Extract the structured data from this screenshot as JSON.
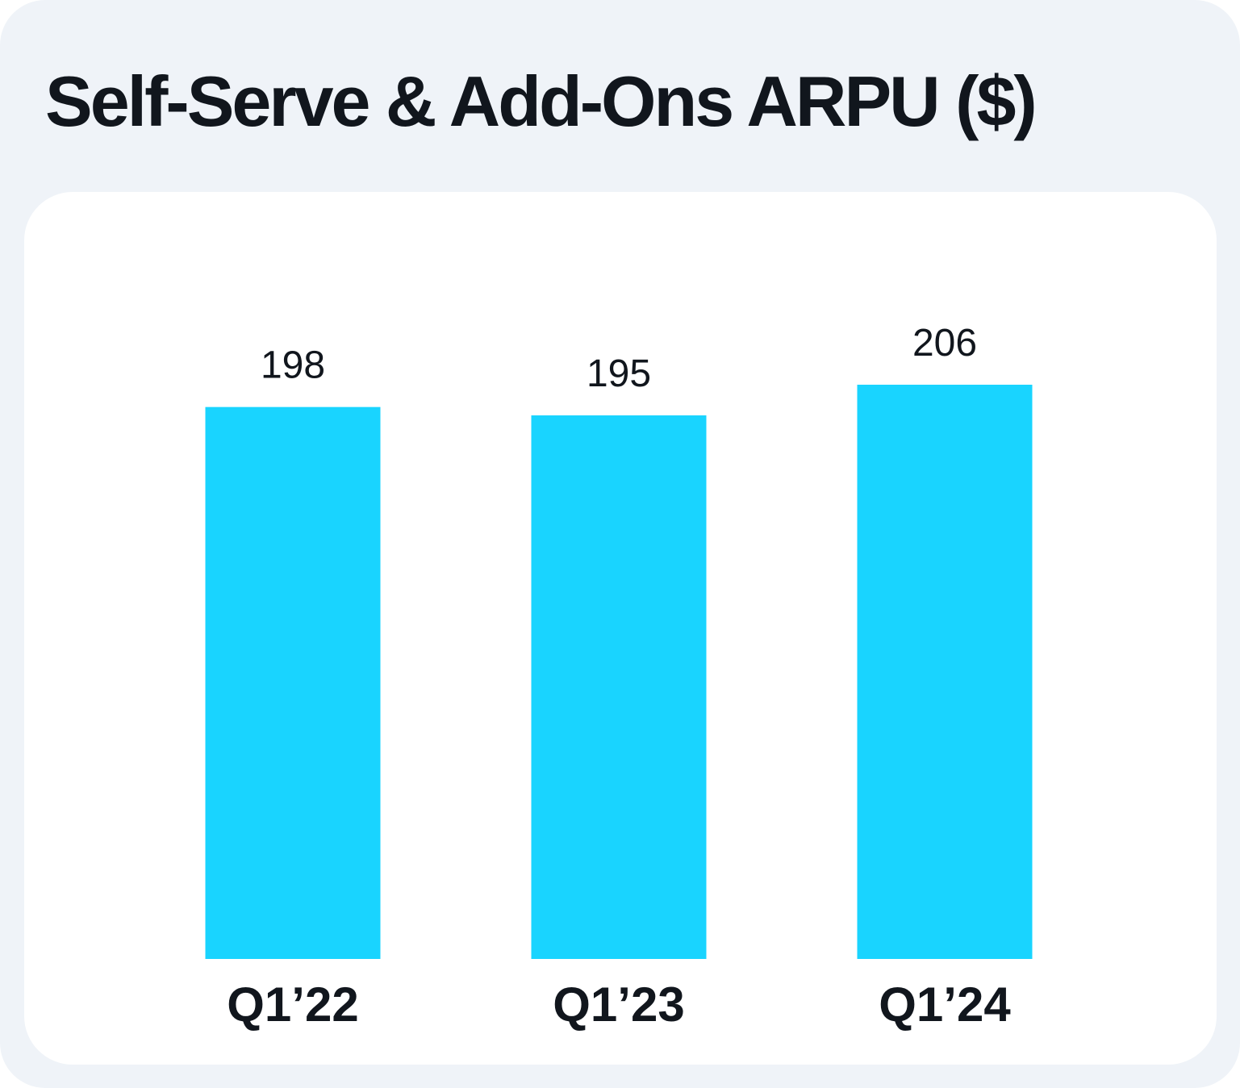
{
  "title": "Self-Serve & Add-Ons ARPU ($)",
  "colors": {
    "background": "#eff3f8",
    "panel": "#ffffff",
    "bar": "#19d4ff",
    "text": "#11161d"
  },
  "chart_data": {
    "type": "bar",
    "categories": [
      "Q1’22",
      "Q1’23",
      "Q1’24"
    ],
    "values": [
      198,
      195,
      206
    ],
    "data_labels": [
      "198",
      "195",
      "206"
    ],
    "xlabel": "",
    "ylabel": "",
    "ylim": [
      0,
      206
    ],
    "grid": false,
    "legend": "none"
  }
}
